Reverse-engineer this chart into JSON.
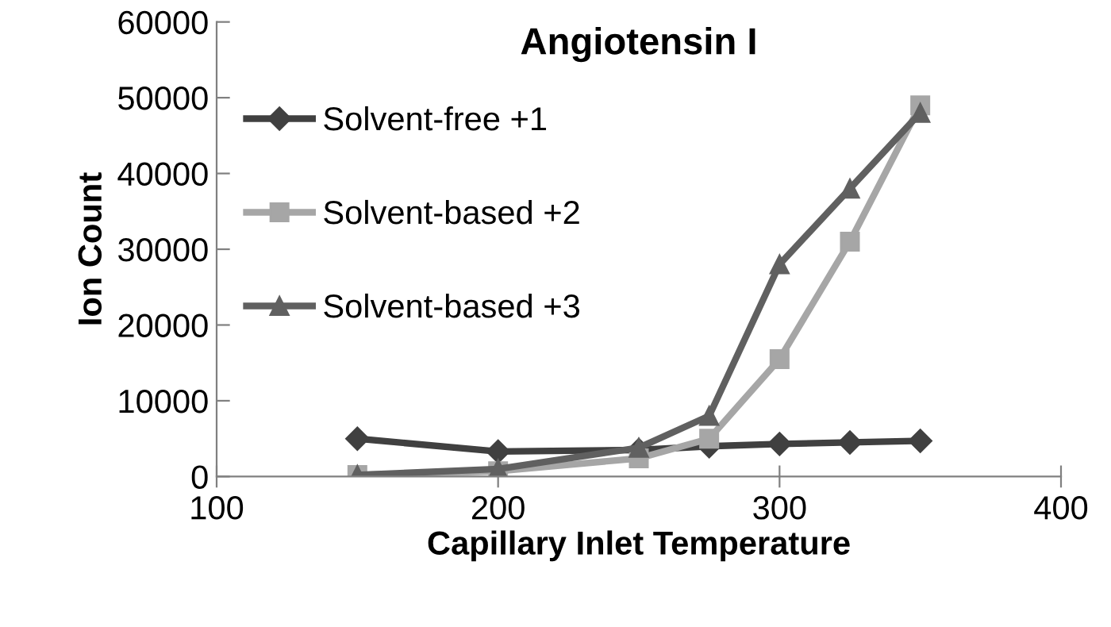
{
  "chart_data": {
    "type": "line",
    "title": "Angiotensin I",
    "xlabel": "Capillary Inlet Temperature",
    "ylabel": "Ion Count",
    "x": [
      150,
      200,
      250,
      275,
      300,
      325,
      350
    ],
    "series": [
      {
        "name": "Solvent-free +1",
        "color": "#404040",
        "marker": "diamond",
        "values": [
          5000,
          3300,
          3500,
          4000,
          4300,
          4500,
          4700
        ]
      },
      {
        "name": "Solvent-based +2",
        "color": "#a6a6a6",
        "marker": "square",
        "values": [
          200,
          700,
          2400,
          5000,
          15500,
          31000,
          49000
        ]
      },
      {
        "name": "Solvent-based +3",
        "color": "#606060",
        "marker": "triangle",
        "values": [
          200,
          1000,
          3800,
          8000,
          28000,
          38000,
          48000
        ]
      }
    ],
    "xlim": [
      100,
      400
    ],
    "xticks": [
      100,
      200,
      300,
      400
    ],
    "ylim": [
      0,
      60000
    ],
    "yticks": [
      0,
      10000,
      20000,
      30000,
      40000,
      50000,
      60000
    ],
    "grid": false,
    "legend": "top left",
    "line_style": "solid"
  }
}
